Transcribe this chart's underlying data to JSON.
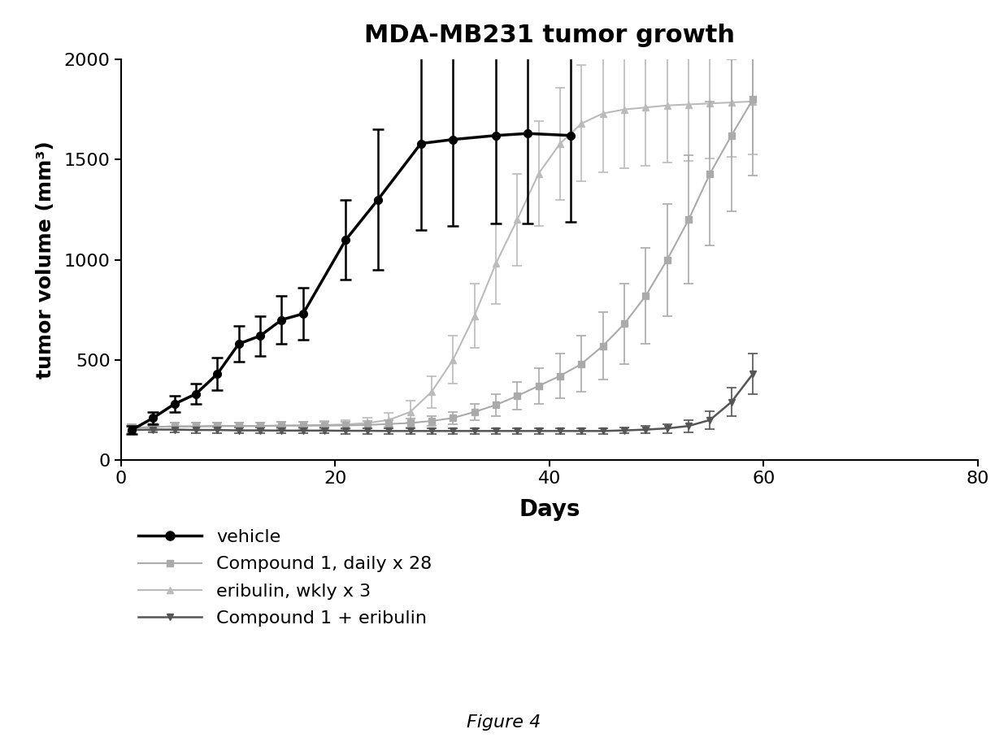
{
  "title": "MDA-MB231 tumor growth",
  "xlabel": "Days",
  "ylabel": "tumor volume (mm³)",
  "xlim": [
    0,
    80
  ],
  "ylim": [
    0,
    2000
  ],
  "xticks": [
    0,
    20,
    40,
    60,
    80
  ],
  "yticks": [
    0,
    500,
    1000,
    1500,
    2000
  ],
  "figure_caption": "Figure 4",
  "vehicle": {
    "x": [
      1,
      3,
      5,
      7,
      9,
      11,
      13,
      15,
      17,
      21,
      24,
      28,
      31,
      35,
      38,
      42
    ],
    "y": [
      150,
      210,
      280,
      330,
      430,
      580,
      620,
      700,
      730,
      1100,
      1300,
      1580,
      1600,
      1620,
      1630,
      1620
    ],
    "yerr": [
      20,
      30,
      40,
      50,
      80,
      90,
      100,
      120,
      130,
      200,
      350,
      430,
      430,
      440,
      450,
      430
    ],
    "color": "#000000",
    "marker": "o",
    "label": "vehicle"
  },
  "compound1": {
    "x": [
      1,
      3,
      5,
      7,
      9,
      11,
      13,
      15,
      17,
      19,
      21,
      23,
      25,
      27,
      29,
      31,
      33,
      35,
      37,
      39,
      41,
      43,
      45,
      47,
      49,
      51,
      53,
      55,
      57,
      59
    ],
    "y": [
      160,
      165,
      168,
      168,
      170,
      170,
      170,
      172,
      172,
      172,
      173,
      175,
      180,
      185,
      195,
      210,
      240,
      275,
      320,
      370,
      420,
      480,
      570,
      680,
      820,
      1000,
      1200,
      1430,
      1620,
      1800
    ],
    "yerr": [
      20,
      18,
      18,
      18,
      18,
      18,
      18,
      18,
      18,
      18,
      18,
      18,
      20,
      22,
      25,
      30,
      40,
      55,
      70,
      90,
      110,
      140,
      170,
      200,
      240,
      280,
      320,
      360,
      380,
      380
    ],
    "color": "#aaaaaa",
    "marker": "s",
    "label": "Compound 1, daily x 28"
  },
  "eribulin": {
    "x": [
      1,
      3,
      5,
      7,
      9,
      11,
      13,
      15,
      17,
      19,
      21,
      23,
      25,
      27,
      29,
      31,
      33,
      35,
      37,
      39,
      41,
      43,
      45,
      47,
      49,
      51,
      53,
      55,
      57,
      59
    ],
    "y": [
      160,
      165,
      168,
      168,
      170,
      170,
      170,
      172,
      173,
      175,
      178,
      185,
      200,
      240,
      340,
      500,
      720,
      980,
      1200,
      1430,
      1580,
      1680,
      1730,
      1750,
      1760,
      1770,
      1775,
      1780,
      1785,
      1790
    ],
    "yerr": [
      20,
      18,
      18,
      18,
      18,
      18,
      18,
      18,
      18,
      18,
      20,
      25,
      35,
      55,
      80,
      120,
      160,
      200,
      230,
      260,
      280,
      290,
      295,
      295,
      290,
      285,
      280,
      275,
      270,
      265
    ],
    "color": "#bbbbbb",
    "marker": "^",
    "label": "eribulin, wkly x 3"
  },
  "combo": {
    "x": [
      1,
      3,
      5,
      7,
      9,
      11,
      13,
      15,
      17,
      19,
      21,
      23,
      25,
      27,
      29,
      31,
      33,
      35,
      37,
      39,
      41,
      43,
      45,
      47,
      49,
      51,
      53,
      55,
      57,
      59
    ],
    "y": [
      150,
      152,
      152,
      150,
      150,
      148,
      148,
      147,
      147,
      147,
      146,
      146,
      145,
      145,
      145,
      145,
      145,
      145,
      145,
      145,
      145,
      145,
      145,
      148,
      152,
      158,
      170,
      200,
      290,
      430
    ],
    "yerr": [
      18,
      15,
      15,
      15,
      15,
      14,
      14,
      14,
      14,
      14,
      14,
      14,
      14,
      14,
      14,
      14,
      14,
      14,
      14,
      14,
      14,
      14,
      14,
      15,
      18,
      22,
      30,
      45,
      70,
      100
    ],
    "color": "#555555",
    "marker": "v",
    "label": "Compound 1 + eribulin"
  }
}
